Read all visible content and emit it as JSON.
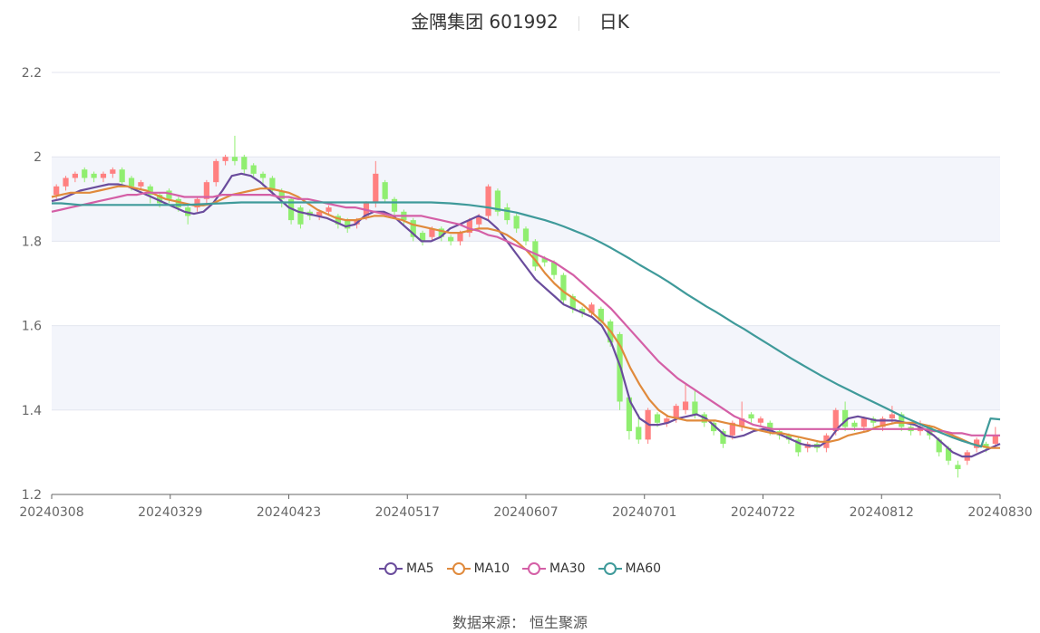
{
  "header": {
    "stock": "金隅集团 601992",
    "period": "日K"
  },
  "source": "数据来源： 恒生聚源",
  "chart_data": {
    "type": "candlestick",
    "ylim": [
      1.2,
      2.2
    ],
    "y_ticks": [
      "2.2",
      "2",
      "1.8",
      "1.6",
      "1.4",
      "1.2"
    ],
    "x_ticks": [
      "20240308",
      "20240329",
      "20240423",
      "20240517",
      "20240607",
      "20240701",
      "20240722",
      "20240812",
      "20240830"
    ],
    "colors": {
      "up": "#ff8080",
      "down": "#90ee70",
      "MA5": "#6a4c9c",
      "MA10": "#e08a3c",
      "MA30": "#d45fa6",
      "MA60": "#3f9a9a",
      "band": "#f3f5fb",
      "grid": "#e3e6ef"
    },
    "series": [
      {
        "name": "MA5",
        "values": [
          1.895,
          1.9,
          1.91,
          1.92,
          1.925,
          1.93,
          1.935,
          1.935,
          1.93,
          1.92,
          1.91,
          1.9,
          1.89,
          1.88,
          1.87,
          1.865,
          1.87,
          1.89,
          1.92,
          1.955,
          1.96,
          1.955,
          1.94,
          1.92,
          1.9,
          1.88,
          1.87,
          1.865,
          1.86,
          1.855,
          1.845,
          1.835,
          1.84,
          1.86,
          1.87,
          1.87,
          1.86,
          1.84,
          1.82,
          1.8,
          1.8,
          1.81,
          1.83,
          1.84,
          1.85,
          1.86,
          1.85,
          1.83,
          1.8,
          1.77,
          1.74,
          1.71,
          1.69,
          1.67,
          1.65,
          1.64,
          1.63,
          1.62,
          1.6,
          1.56,
          1.5,
          1.42,
          1.38,
          1.365,
          1.365,
          1.37,
          1.38,
          1.385,
          1.39,
          1.38,
          1.36,
          1.34,
          1.335,
          1.34,
          1.35,
          1.355,
          1.35,
          1.34,
          1.33,
          1.32,
          1.315,
          1.315,
          1.33,
          1.36,
          1.38,
          1.385,
          1.38,
          1.375,
          1.375,
          1.375,
          1.37,
          1.365,
          1.355,
          1.34,
          1.32,
          1.3,
          1.29,
          1.29,
          1.3,
          1.31,
          1.32
        ]
      },
      {
        "name": "MA10",
        "values": [
          1.905,
          1.91,
          1.915,
          1.915,
          1.915,
          1.92,
          1.925,
          1.93,
          1.93,
          1.925,
          1.92,
          1.91,
          1.9,
          1.895,
          1.89,
          1.885,
          1.885,
          1.89,
          1.9,
          1.91,
          1.915,
          1.92,
          1.925,
          1.925,
          1.92,
          1.915,
          1.905,
          1.89,
          1.875,
          1.865,
          1.855,
          1.85,
          1.85,
          1.855,
          1.86,
          1.86,
          1.855,
          1.85,
          1.84,
          1.835,
          1.83,
          1.825,
          1.82,
          1.82,
          1.825,
          1.83,
          1.83,
          1.825,
          1.815,
          1.8,
          1.78,
          1.755,
          1.725,
          1.7,
          1.68,
          1.665,
          1.65,
          1.63,
          1.61,
          1.585,
          1.55,
          1.5,
          1.46,
          1.425,
          1.4,
          1.385,
          1.38,
          1.375,
          1.375,
          1.375,
          1.375,
          1.37,
          1.365,
          1.36,
          1.355,
          1.35,
          1.345,
          1.345,
          1.34,
          1.335,
          1.33,
          1.325,
          1.325,
          1.33,
          1.34,
          1.345,
          1.35,
          1.36,
          1.365,
          1.37,
          1.37,
          1.37,
          1.365,
          1.36,
          1.35,
          1.34,
          1.33,
          1.32,
          1.315,
          1.31,
          1.31
        ]
      },
      {
        "name": "MA30",
        "values": [
          1.87,
          1.875,
          1.88,
          1.885,
          1.89,
          1.895,
          1.9,
          1.905,
          1.91,
          1.91,
          1.915,
          1.915,
          1.915,
          1.91,
          1.905,
          1.905,
          1.905,
          1.905,
          1.91,
          1.91,
          1.91,
          1.91,
          1.91,
          1.91,
          1.905,
          1.905,
          1.9,
          1.9,
          1.895,
          1.89,
          1.885,
          1.88,
          1.88,
          1.875,
          1.87,
          1.865,
          1.86,
          1.86,
          1.86,
          1.86,
          1.855,
          1.85,
          1.845,
          1.84,
          1.83,
          1.825,
          1.815,
          1.81,
          1.8,
          1.79,
          1.78,
          1.77,
          1.76,
          1.75,
          1.735,
          1.72,
          1.7,
          1.68,
          1.66,
          1.64,
          1.615,
          1.59,
          1.565,
          1.54,
          1.515,
          1.495,
          1.475,
          1.46,
          1.445,
          1.43,
          1.415,
          1.4,
          1.385,
          1.375,
          1.365,
          1.36,
          1.355,
          1.355,
          1.355,
          1.355,
          1.355,
          1.355,
          1.355,
          1.355,
          1.355,
          1.355,
          1.355,
          1.355,
          1.355,
          1.355,
          1.355,
          1.355,
          1.355,
          1.35,
          1.35,
          1.345,
          1.345,
          1.34,
          1.34,
          1.34,
          1.34
        ]
      },
      {
        "name": "MA60",
        "values": [
          1.89,
          1.89,
          1.888,
          1.886,
          1.886,
          1.886,
          1.886,
          1.886,
          1.886,
          1.886,
          1.886,
          1.886,
          1.886,
          1.886,
          1.886,
          1.887,
          1.888,
          1.889,
          1.89,
          1.891,
          1.892,
          1.892,
          1.892,
          1.892,
          1.892,
          1.892,
          1.892,
          1.892,
          1.892,
          1.892,
          1.892,
          1.892,
          1.892,
          1.892,
          1.892,
          1.892,
          1.892,
          1.892,
          1.892,
          1.892,
          1.892,
          1.891,
          1.89,
          1.888,
          1.886,
          1.883,
          1.88,
          1.876,
          1.872,
          1.868,
          1.862,
          1.856,
          1.85,
          1.843,
          1.835,
          1.826,
          1.817,
          1.807,
          1.796,
          1.784,
          1.771,
          1.758,
          1.744,
          1.731,
          1.718,
          1.704,
          1.689,
          1.674,
          1.66,
          1.646,
          1.633,
          1.619,
          1.605,
          1.592,
          1.578,
          1.564,
          1.55,
          1.536,
          1.522,
          1.509,
          1.496,
          1.483,
          1.471,
          1.459,
          1.448,
          1.437,
          1.426,
          1.415,
          1.404,
          1.393,
          1.382,
          1.372,
          1.362,
          1.353,
          1.344,
          1.335,
          1.327,
          1.32,
          1.313,
          1.38,
          1.378
        ]
      },
      {
        "name": "candles",
        "ohlc": [
          [
            1.91,
            1.93,
            1.9,
            1.935
          ],
          [
            1.93,
            1.95,
            1.92,
            1.955
          ],
          [
            1.95,
            1.96,
            1.94,
            1.965
          ],
          [
            1.97,
            1.95,
            1.94,
            1.975
          ],
          [
            1.96,
            1.95,
            1.94,
            1.965
          ],
          [
            1.95,
            1.96,
            1.94,
            1.965
          ],
          [
            1.96,
            1.97,
            1.95,
            1.975
          ],
          [
            1.97,
            1.94,
            1.93,
            1.975
          ],
          [
            1.95,
            1.93,
            1.92,
            1.955
          ],
          [
            1.93,
            1.94,
            1.92,
            1.945
          ],
          [
            1.93,
            1.91,
            1.89,
            1.935
          ],
          [
            1.91,
            1.89,
            1.88,
            1.915
          ],
          [
            1.92,
            1.9,
            1.89,
            1.925
          ],
          [
            1.9,
            1.88,
            1.87,
            1.905
          ],
          [
            1.88,
            1.86,
            1.84,
            1.885
          ],
          [
            1.88,
            1.9,
            1.87,
            1.905
          ],
          [
            1.9,
            1.94,
            1.89,
            1.945
          ],
          [
            1.94,
            1.99,
            1.93,
            1.995
          ],
          [
            1.99,
            2.0,
            1.98,
            2.005
          ],
          [
            2.0,
            1.99,
            1.98,
            2.05
          ],
          [
            2.0,
            1.97,
            1.96,
            2.005
          ],
          [
            1.98,
            1.96,
            1.95,
            1.985
          ],
          [
            1.96,
            1.95,
            1.93,
            1.965
          ],
          [
            1.95,
            1.92,
            1.91,
            1.955
          ],
          [
            1.92,
            1.9,
            1.88,
            1.925
          ],
          [
            1.9,
            1.85,
            1.84,
            1.905
          ],
          [
            1.88,
            1.84,
            1.83,
            1.885
          ],
          [
            1.87,
            1.86,
            1.85,
            1.875
          ],
          [
            1.86,
            1.87,
            1.85,
            1.875
          ],
          [
            1.87,
            1.88,
            1.86,
            1.885
          ],
          [
            1.86,
            1.84,
            1.83,
            1.865
          ],
          [
            1.85,
            1.83,
            1.82,
            1.855
          ],
          [
            1.84,
            1.85,
            1.83,
            1.855
          ],
          [
            1.86,
            1.89,
            1.85,
            1.895
          ],
          [
            1.89,
            1.96,
            1.88,
            1.99
          ],
          [
            1.94,
            1.9,
            1.89,
            1.945
          ],
          [
            1.9,
            1.87,
            1.86,
            1.905
          ],
          [
            1.87,
            1.85,
            1.84,
            1.875
          ],
          [
            1.85,
            1.81,
            1.8,
            1.855
          ],
          [
            1.82,
            1.8,
            1.79,
            1.825
          ],
          [
            1.81,
            1.83,
            1.8,
            1.835
          ],
          [
            1.83,
            1.81,
            1.8,
            1.835
          ],
          [
            1.81,
            1.8,
            1.79,
            1.815
          ],
          [
            1.8,
            1.82,
            1.79,
            1.825
          ],
          [
            1.82,
            1.85,
            1.81,
            1.855
          ],
          [
            1.84,
            1.86,
            1.83,
            1.865
          ],
          [
            1.86,
            1.93,
            1.85,
            1.935
          ],
          [
            1.92,
            1.87,
            1.86,
            1.925
          ],
          [
            1.88,
            1.85,
            1.84,
            1.89
          ],
          [
            1.86,
            1.83,
            1.82,
            1.865
          ],
          [
            1.83,
            1.8,
            1.79,
            1.835
          ],
          [
            1.8,
            1.74,
            1.73,
            1.805
          ],
          [
            1.76,
            1.75,
            1.74,
            1.765
          ],
          [
            1.75,
            1.72,
            1.71,
            1.755
          ],
          [
            1.72,
            1.66,
            1.65,
            1.725
          ],
          [
            1.67,
            1.64,
            1.63,
            1.675
          ],
          [
            1.64,
            1.63,
            1.62,
            1.645
          ],
          [
            1.63,
            1.65,
            1.62,
            1.655
          ],
          [
            1.64,
            1.61,
            1.6,
            1.645
          ],
          [
            1.61,
            1.56,
            1.55,
            1.615
          ],
          [
            1.58,
            1.42,
            1.4,
            1.585
          ],
          [
            1.43,
            1.35,
            1.33,
            1.435
          ],
          [
            1.36,
            1.33,
            1.32,
            1.39
          ],
          [
            1.33,
            1.4,
            1.32,
            1.405
          ],
          [
            1.39,
            1.37,
            1.36,
            1.395
          ],
          [
            1.37,
            1.38,
            1.36,
            1.385
          ],
          [
            1.38,
            1.41,
            1.37,
            1.415
          ],
          [
            1.4,
            1.42,
            1.39,
            1.46
          ],
          [
            1.42,
            1.39,
            1.38,
            1.45
          ],
          [
            1.39,
            1.37,
            1.36,
            1.395
          ],
          [
            1.37,
            1.35,
            1.34,
            1.375
          ],
          [
            1.35,
            1.32,
            1.31,
            1.355
          ],
          [
            1.34,
            1.37,
            1.33,
            1.375
          ],
          [
            1.36,
            1.38,
            1.35,
            1.42
          ],
          [
            1.39,
            1.38,
            1.37,
            1.395
          ],
          [
            1.37,
            1.38,
            1.36,
            1.385
          ],
          [
            1.37,
            1.35,
            1.34,
            1.375
          ],
          [
            1.35,
            1.34,
            1.33,
            1.355
          ],
          [
            1.34,
            1.33,
            1.32,
            1.345
          ],
          [
            1.33,
            1.3,
            1.29,
            1.335
          ],
          [
            1.31,
            1.32,
            1.3,
            1.325
          ],
          [
            1.32,
            1.31,
            1.3,
            1.325
          ],
          [
            1.31,
            1.34,
            1.3,
            1.345
          ],
          [
            1.35,
            1.4,
            1.34,
            1.405
          ],
          [
            1.4,
            1.36,
            1.35,
            1.42
          ],
          [
            1.37,
            1.36,
            1.35,
            1.375
          ],
          [
            1.36,
            1.38,
            1.35,
            1.385
          ],
          [
            1.38,
            1.37,
            1.36,
            1.385
          ],
          [
            1.36,
            1.38,
            1.35,
            1.385
          ],
          [
            1.38,
            1.39,
            1.37,
            1.41
          ],
          [
            1.39,
            1.36,
            1.35,
            1.395
          ],
          [
            1.36,
            1.35,
            1.34,
            1.365
          ],
          [
            1.35,
            1.36,
            1.34,
            1.375
          ],
          [
            1.36,
            1.34,
            1.33,
            1.365
          ],
          [
            1.33,
            1.3,
            1.29,
            1.335
          ],
          [
            1.31,
            1.28,
            1.27,
            1.315
          ],
          [
            1.27,
            1.26,
            1.24,
            1.28
          ],
          [
            1.28,
            1.3,
            1.27,
            1.305
          ],
          [
            1.31,
            1.33,
            1.3,
            1.335
          ],
          [
            1.32,
            1.31,
            1.3,
            1.325
          ],
          [
            1.32,
            1.34,
            1.31,
            1.36
          ]
        ]
      }
    ]
  },
  "legend": {
    "items": [
      {
        "label": "MA5",
        "color": "#6a4c9c"
      },
      {
        "label": "MA10",
        "color": "#e08a3c"
      },
      {
        "label": "MA30",
        "color": "#d45fa6"
      },
      {
        "label": "MA60",
        "color": "#3f9a9a"
      }
    ]
  }
}
